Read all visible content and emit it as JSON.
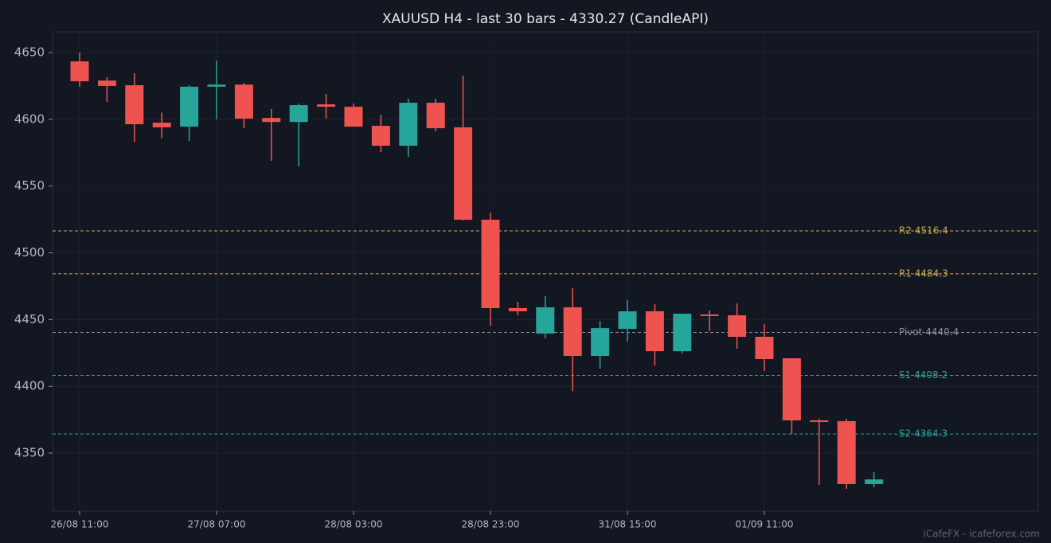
{
  "chart_data": {
    "type": "candlestick",
    "title": "XAUUSD H4 - last 30 bars - 4330.27 (CandleAPI)",
    "categories": [
      "26/08 11:00",
      null,
      null,
      null,
      null,
      "27/08 07:00",
      null,
      null,
      null,
      null,
      "28/08 03:00",
      null,
      null,
      null,
      null,
      "28/08 23:00",
      null,
      null,
      null,
      null,
      "31/08 15:00",
      null,
      null,
      null,
      null,
      "01/09 11:00",
      null,
      null,
      null,
      null
    ],
    "open": [
      4643.4,
      4629.0,
      4625.5,
      4597.5,
      4594.5,
      4624.4,
      4626.0,
      4601.0,
      4598.0,
      4611.2,
      4609.4,
      4595.1,
      4580.2,
      4612.4,
      4594.0,
      4524.8,
      4458.6,
      4439.5,
      4459.2,
      4422.8,
      4443.0,
      4456.2,
      4426.3,
      4453.8,
      4453.2,
      4437.1,
      4421.0,
      4374.5,
      4373.9,
      4326.8
    ],
    "high": [
      4650.0,
      4631.5,
      4634.5,
      4605.0,
      4625.5,
      4644.0,
      4627.3,
      4607.7,
      4611.8,
      4619.0,
      4611.8,
      4603.5,
      4615.4,
      4615.4,
      4632.7,
      4530.1,
      4463.3,
      4467.5,
      4473.5,
      4449.0,
      4464.5,
      4461.5,
      4454.4,
      4456.8,
      4462.1,
      4446.6,
      4421.0,
      4375.7,
      4375.7,
      4335.7
    ],
    "low": [
      4624.4,
      4613.0,
      4583.2,
      4585.6,
      4583.8,
      4600.0,
      4593.3,
      4568.9,
      4564.7,
      4600.5,
      4594.5,
      4575.4,
      4571.9,
      4591.0,
      4524.2,
      4445.4,
      4453.2,
      4435.9,
      4396.5,
      4413.2,
      4433.5,
      4415.6,
      4424.6,
      4441.3,
      4428.1,
      4411.4,
      4364.3,
      4326.2,
      4323.2,
      4324.4
    ],
    "close": [
      4628.5,
      4625.0,
      4596.3,
      4594.0,
      4624.4,
      4626.0,
      4600.5,
      4598.0,
      4610.6,
      4609.4,
      4594.5,
      4580.2,
      4612.4,
      4593.3,
      4524.8,
      4458.6,
      4456.2,
      4459.2,
      4422.8,
      4443.6,
      4456.2,
      4426.3,
      4454.4,
      4452.6,
      4437.1,
      4420.4,
      4374.5,
      4373.3,
      4326.8,
      4330.27
    ],
    "up_color": "#26a69a",
    "down_color": "#ef5350",
    "ylim": [
      4306.5,
      4665.5
    ],
    "yticks": [
      4350,
      4400,
      4450,
      4500,
      4550,
      4600,
      4650
    ],
    "grid": true,
    "levels": [
      {
        "label": "R2 4516.4",
        "value": 4516.4,
        "color": "#c9a94e"
      },
      {
        "label": "R1 4484.3",
        "value": 4484.3,
        "color": "#c9a94e"
      },
      {
        "label": "Pivot 4440.4",
        "value": 4440.4,
        "color": "#8a8f98"
      },
      {
        "label": "S1 4408.2",
        "value": 4408.2,
        "color": "#26a69a"
      },
      {
        "label": "S2 4364.3",
        "value": 4364.3,
        "color": "#26a69a"
      }
    ]
  },
  "footer": "iCafeFX - icafeforex.com"
}
